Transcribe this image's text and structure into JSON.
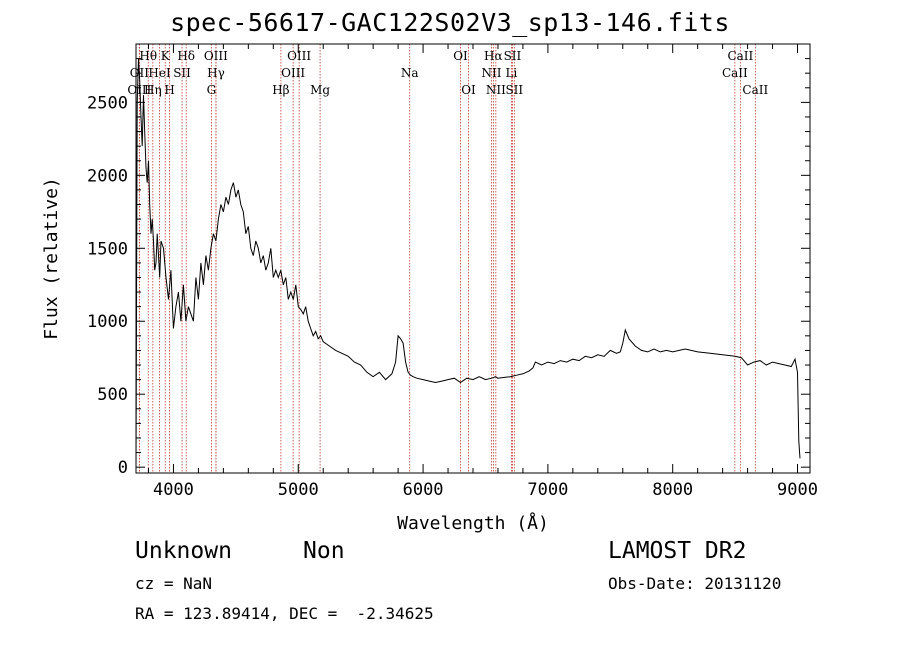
{
  "chart_data": {
    "type": "line",
    "title": "spec-56617-GAC122S02V3_sp13-146.fits",
    "xlabel": "Wavelength (Å)",
    "ylabel": "Flux (relative)",
    "xlim": [
      3700,
      9100
    ],
    "ylim": [
      -40,
      2900
    ],
    "x_ticks": [
      4000,
      5000,
      6000,
      7000,
      8000,
      9000
    ],
    "y_ticks": [
      0,
      500,
      1000,
      1500,
      2000,
      2500
    ],
    "grid": false,
    "series": [
      {
        "x": [
          3700,
          3710,
          3720,
          3730,
          3740,
          3750,
          3760,
          3770,
          3780,
          3790,
          3800,
          3810,
          3820,
          3830,
          3840,
          3850,
          3860,
          3870,
          3880,
          3890,
          3900,
          3920,
          3940,
          3960,
          3980,
          4000,
          4020,
          4040,
          4060,
          4080,
          4100,
          4120,
          4140,
          4160,
          4180,
          4200,
          4220,
          4240,
          4260,
          4280,
          4300,
          4320,
          4340,
          4360,
          4380,
          4400,
          4420,
          4440,
          4460,
          4480,
          4500,
          4520,
          4540,
          4560,
          4580,
          4600,
          4620,
          4640,
          4660,
          4680,
          4700,
          4720,
          4740,
          4760,
          4780,
          4800,
          4820,
          4840,
          4860,
          4880,
          4900,
          4920,
          4940,
          4960,
          4980,
          5000,
          5020,
          5040,
          5060,
          5080,
          5100,
          5120,
          5140,
          5160,
          5180,
          5200,
          5250,
          5300,
          5350,
          5400,
          5450,
          5500,
          5550,
          5600,
          5650,
          5700,
          5750,
          5780,
          5800,
          5820,
          5840,
          5860,
          5880,
          5900,
          5920,
          5950,
          6000,
          6050,
          6100,
          6150,
          6200,
          6250,
          6300,
          6350,
          6400,
          6450,
          6500,
          6550,
          6580,
          6600,
          6650,
          6700,
          6750,
          6800,
          6850,
          6880,
          6900,
          6950,
          7000,
          7050,
          7100,
          7150,
          7200,
          7250,
          7300,
          7350,
          7400,
          7450,
          7500,
          7550,
          7580,
          7600,
          7620,
          7650,
          7700,
          7750,
          7800,
          7850,
          7900,
          7950,
          8000,
          8100,
          8200,
          8300,
          8400,
          8500,
          8550,
          8600,
          8650,
          8700,
          8750,
          8800,
          8850,
          8900,
          8950,
          8980,
          9000,
          9010,
          9020
        ],
        "y": [
          0,
          2500,
          2800,
          2650,
          2400,
          2200,
          2550,
          2300,
          2050,
          1950,
          2100,
          1800,
          1600,
          1700,
          1550,
          1350,
          1400,
          1600,
          1450,
          1300,
          1550,
          1500,
          1300,
          1150,
          1350,
          950,
          1100,
          1200,
          1000,
          1250,
          1000,
          1100,
          1050,
          1000,
          1300,
          1150,
          1400,
          1250,
          1450,
          1350,
          1500,
          1600,
          1550,
          1700,
          1800,
          1750,
          1850,
          1800,
          1900,
          1950,
          1850,
          1900,
          1800,
          1750,
          1600,
          1650,
          1500,
          1450,
          1550,
          1500,
          1400,
          1450,
          1350,
          1400,
          1500,
          1300,
          1350,
          1300,
          1350,
          1250,
          1300,
          1150,
          1200,
          1150,
          1250,
          1100,
          1080,
          1050,
          1100,
          1000,
          950,
          900,
          930,
          880,
          900,
          860,
          830,
          800,
          780,
          760,
          720,
          700,
          650,
          620,
          650,
          600,
          640,
          720,
          900,
          880,
          850,
          720,
          650,
          630,
          620,
          610,
          600,
          590,
          580,
          590,
          600,
          610,
          580,
          610,
          600,
          620,
          600,
          610,
          620,
          610,
          615,
          620,
          630,
          640,
          660,
          680,
          720,
          700,
          720,
          710,
          730,
          720,
          740,
          730,
          760,
          750,
          770,
          760,
          800,
          780,
          790,
          850,
          940,
          880,
          830,
          800,
          790,
          810,
          790,
          800,
          790,
          810,
          790,
          780,
          770,
          760,
          750,
          700,
          720,
          730,
          700,
          720,
          710,
          700,
          690,
          740,
          650,
          180,
          60
        ]
      }
    ],
    "spectral_lines": [
      {
        "label": "Hθ",
        "x": 3798,
        "row": 0
      },
      {
        "label": "OII",
        "x": 3727,
        "row": 1
      },
      {
        "label": "OIII",
        "x": 3727,
        "row": 2
      },
      {
        "label": "K",
        "x": 3934,
        "row": 0
      },
      {
        "label": "HeI",
        "x": 3889,
        "row": 1
      },
      {
        "label": "Hη",
        "x": 3835,
        "row": 2
      },
      {
        "label": "H",
        "x": 3969,
        "row": 2
      },
      {
        "label": "SII",
        "x": 4069,
        "row": 1
      },
      {
        "label": "Hδ",
        "x": 4102,
        "row": 0
      },
      {
        "label": "OIII",
        "x": 4340,
        "row": 0
      },
      {
        "label": "Hγ",
        "x": 4341,
        "row": 1
      },
      {
        "label": "G",
        "x": 4304,
        "row": 2
      },
      {
        "label": "Hβ",
        "x": 4861,
        "row": 2
      },
      {
        "label": "OIII",
        "x": 5007,
        "row": 0
      },
      {
        "label": "OIII",
        "x": 4959,
        "row": 1
      },
      {
        "label": "Mg",
        "x": 5175,
        "row": 2
      },
      {
        "label": "Na",
        "x": 5893,
        "row": 1
      },
      {
        "label": "OI",
        "x": 6300,
        "row": 0
      },
      {
        "label": "OI",
        "x": 6364,
        "row": 2
      },
      {
        "label": "Hα",
        "x": 6563,
        "row": 0
      },
      {
        "label": "SII",
        "x": 6716,
        "row": 0
      },
      {
        "label": "NII",
        "x": 6548,
        "row": 1
      },
      {
        "label": "Li",
        "x": 6708,
        "row": 1
      },
      {
        "label": "NII",
        "x": 6583,
        "row": 2
      },
      {
        "label": "SII",
        "x": 6731,
        "row": 2
      },
      {
        "label": "CaII",
        "x": 8542,
        "row": 0
      },
      {
        "label": "CaII",
        "x": 8498,
        "row": 1
      },
      {
        "label": "CaII",
        "x": 8662,
        "row": 2
      }
    ]
  },
  "footer": {
    "class_text": "Unknown",
    "subclass_text": "Non",
    "survey": "LAMOST DR2",
    "cz": "cz = NaN",
    "obs_date": "Obs-Date: 20131120",
    "coords": "RA = 123.89414, DEC =  -2.34625"
  },
  "colors": {
    "spectrum": "#000000",
    "line_marker": "#c0392b",
    "axis": "#000000"
  }
}
